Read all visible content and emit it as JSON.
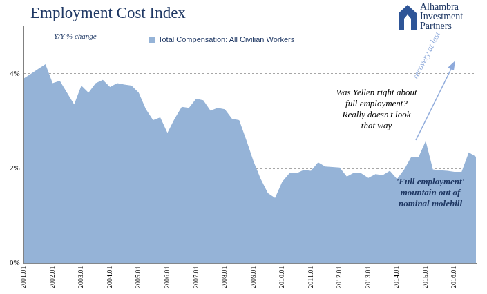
{
  "chart_data": {
    "type": "area",
    "title": "Employment Cost Index",
    "subtitle": "Y/Y % change",
    "logo": "Alhambra Investment Partners",
    "categories": [
      "2001.01",
      null,
      null,
      null,
      "2002.01",
      null,
      null,
      null,
      "2003.01",
      null,
      null,
      null,
      "2004.01",
      null,
      null,
      null,
      "2005.01",
      null,
      null,
      null,
      "2006.01",
      null,
      null,
      null,
      "2007.01",
      null,
      null,
      null,
      "2008.01",
      null,
      null,
      null,
      "2009.01",
      null,
      null,
      null,
      "2010.01",
      null,
      null,
      null,
      "2011.01",
      null,
      null,
      null,
      "2012.01",
      null,
      null,
      null,
      "2013.01",
      null,
      null,
      null,
      "2014.01",
      null,
      null,
      null,
      "2015.01",
      null,
      null,
      null,
      "2016.01",
      null,
      null,
      null
    ],
    "series": [
      {
        "name": "Total Compensation: All Civilian Workers",
        "color": "#95b3d7",
        "values": [
          3.9,
          4.0,
          4.1,
          4.2,
          3.8,
          3.85,
          3.6,
          3.35,
          3.75,
          3.6,
          3.8,
          3.87,
          3.72,
          3.8,
          3.77,
          3.75,
          3.6,
          3.25,
          3.02,
          3.08,
          2.75,
          3.05,
          3.3,
          3.28,
          3.47,
          3.44,
          3.22,
          3.28,
          3.25,
          3.05,
          3.02,
          2.6,
          2.15,
          1.78,
          1.48,
          1.38,
          1.72,
          1.9,
          1.9,
          1.97,
          1.95,
          2.13,
          2.04,
          2.03,
          2.02,
          1.83,
          1.91,
          1.9,
          1.8,
          1.88,
          1.86,
          1.95,
          1.78,
          1.98,
          2.25,
          2.24,
          2.58,
          1.98,
          1.96,
          1.95,
          1.93,
          1.93,
          2.34,
          2.25
        ]
      }
    ],
    "ylim": [
      0,
      5
    ],
    "yticks": [
      {
        "value": 0,
        "label": "0%"
      },
      {
        "value": 2,
        "label": "2%"
      },
      {
        "value": 4,
        "label": "4%"
      }
    ],
    "grid": true,
    "legend": "top",
    "annotations": [
      "Was Yellen right about\nfull employment?\nReally doesn't look\nthat way",
      "recovery at last",
      "'Full employment'\nmountain out of\nnominal molehill"
    ]
  }
}
